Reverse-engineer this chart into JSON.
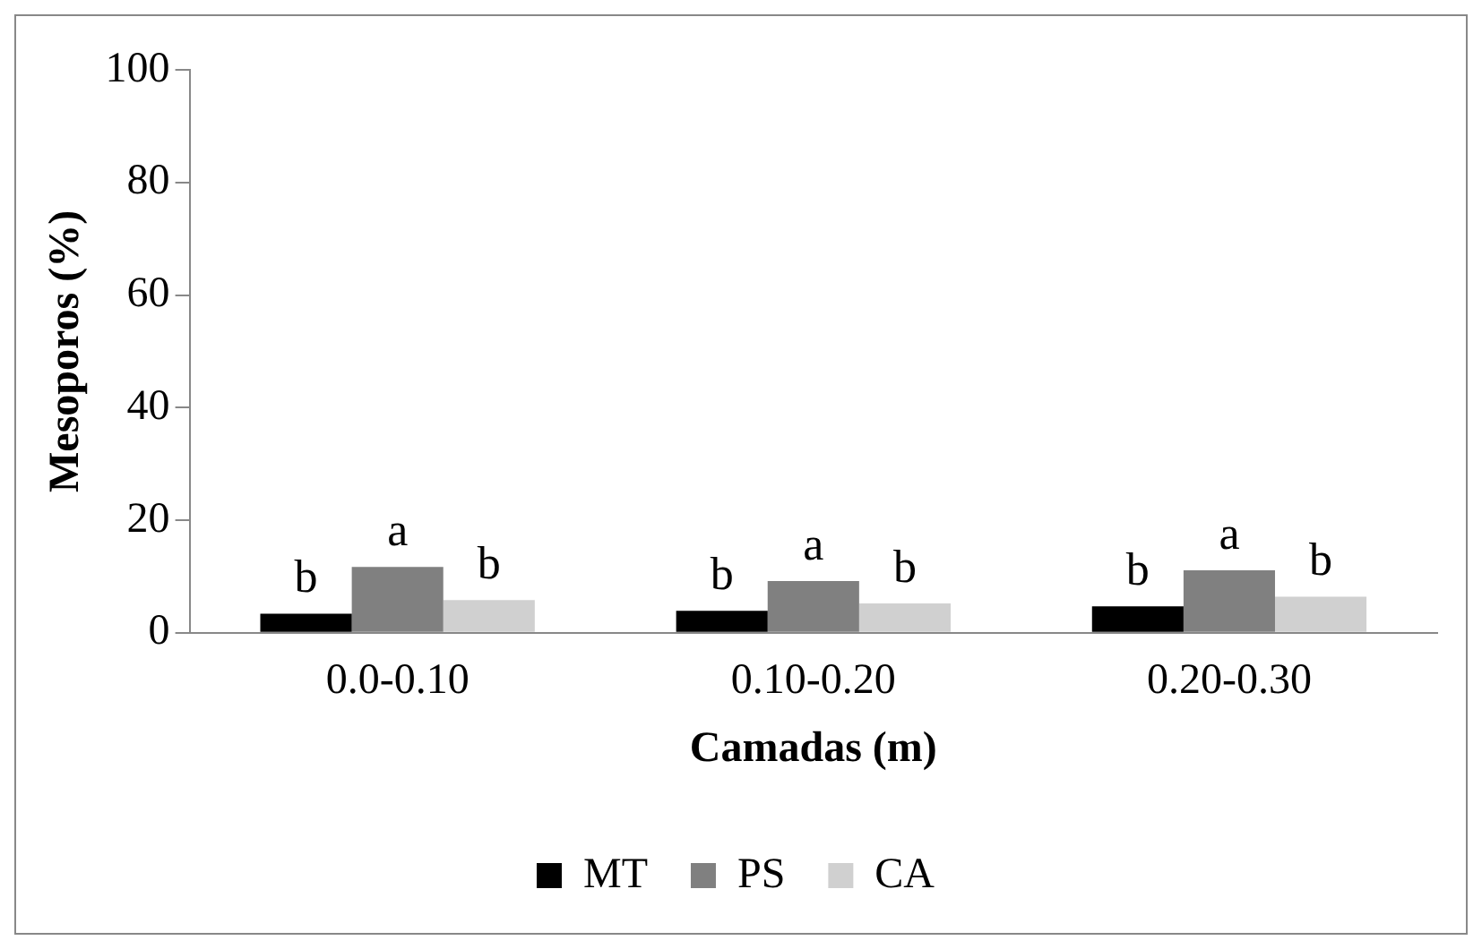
{
  "chart_data": {
    "type": "bar",
    "xlabel": "Camadas (m)",
    "ylabel": "Mesoporos (%)",
    "categories": [
      "0.0-0.10",
      "0.10-0.20",
      "0.20-0.30"
    ],
    "series": [
      {
        "name": "MT",
        "color": "#000000",
        "values": [
          3.4,
          3.9,
          4.7
        ],
        "value_labels": [
          "b",
          "b",
          "b"
        ]
      },
      {
        "name": "PS",
        "color": "#808080",
        "values": [
          11.7,
          9.2,
          11.1
        ],
        "value_labels": [
          "a",
          "a",
          "a"
        ]
      },
      {
        "name": "CA",
        "color": "#d0d0d0",
        "values": [
          5.8,
          5.2,
          6.4
        ],
        "value_labels": [
          "b",
          "b",
          "b"
        ]
      }
    ],
    "ylim": [
      0,
      100
    ],
    "yticks": [
      0,
      20,
      40,
      60,
      80,
      100
    ],
    "grid": false,
    "legend": "bottom"
  }
}
